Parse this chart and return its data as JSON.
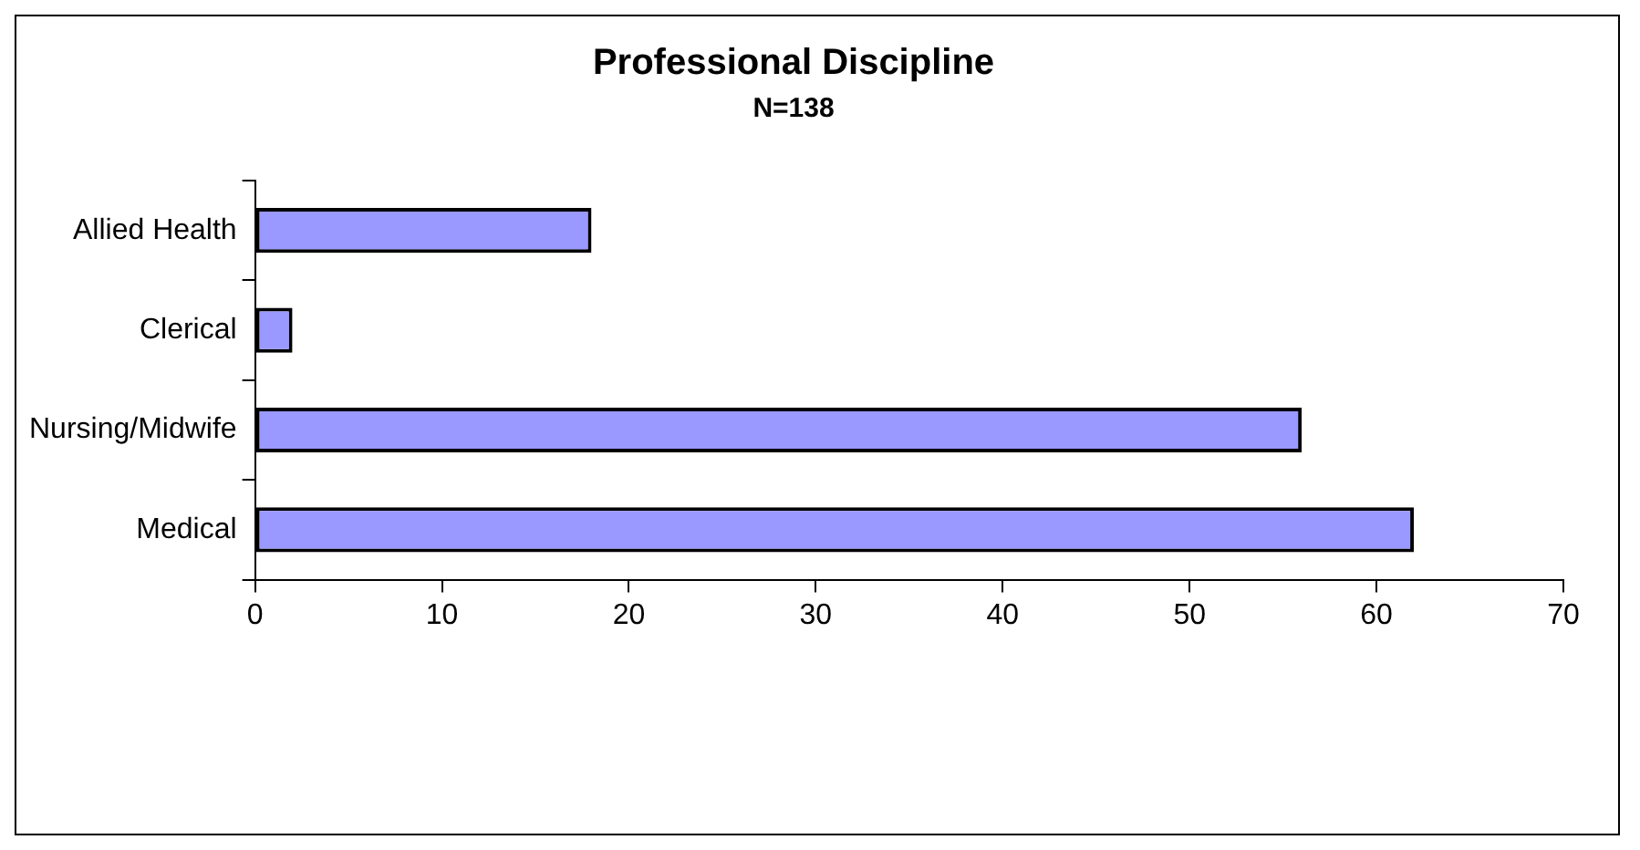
{
  "chart_data": {
    "type": "bar",
    "orientation": "horizontal",
    "title": "Professional Discipline",
    "subtitle": "N=138",
    "categories": [
      "Allied Health",
      "Clerical",
      "Nursing/Midwife",
      "Medical"
    ],
    "values": [
      18,
      2,
      56,
      62
    ],
    "color": "#9999ff",
    "xlim": [
      0,
      70
    ],
    "xticks": [
      0,
      10,
      20,
      30,
      40,
      50,
      60,
      70
    ],
    "grid": false,
    "legend": false
  }
}
